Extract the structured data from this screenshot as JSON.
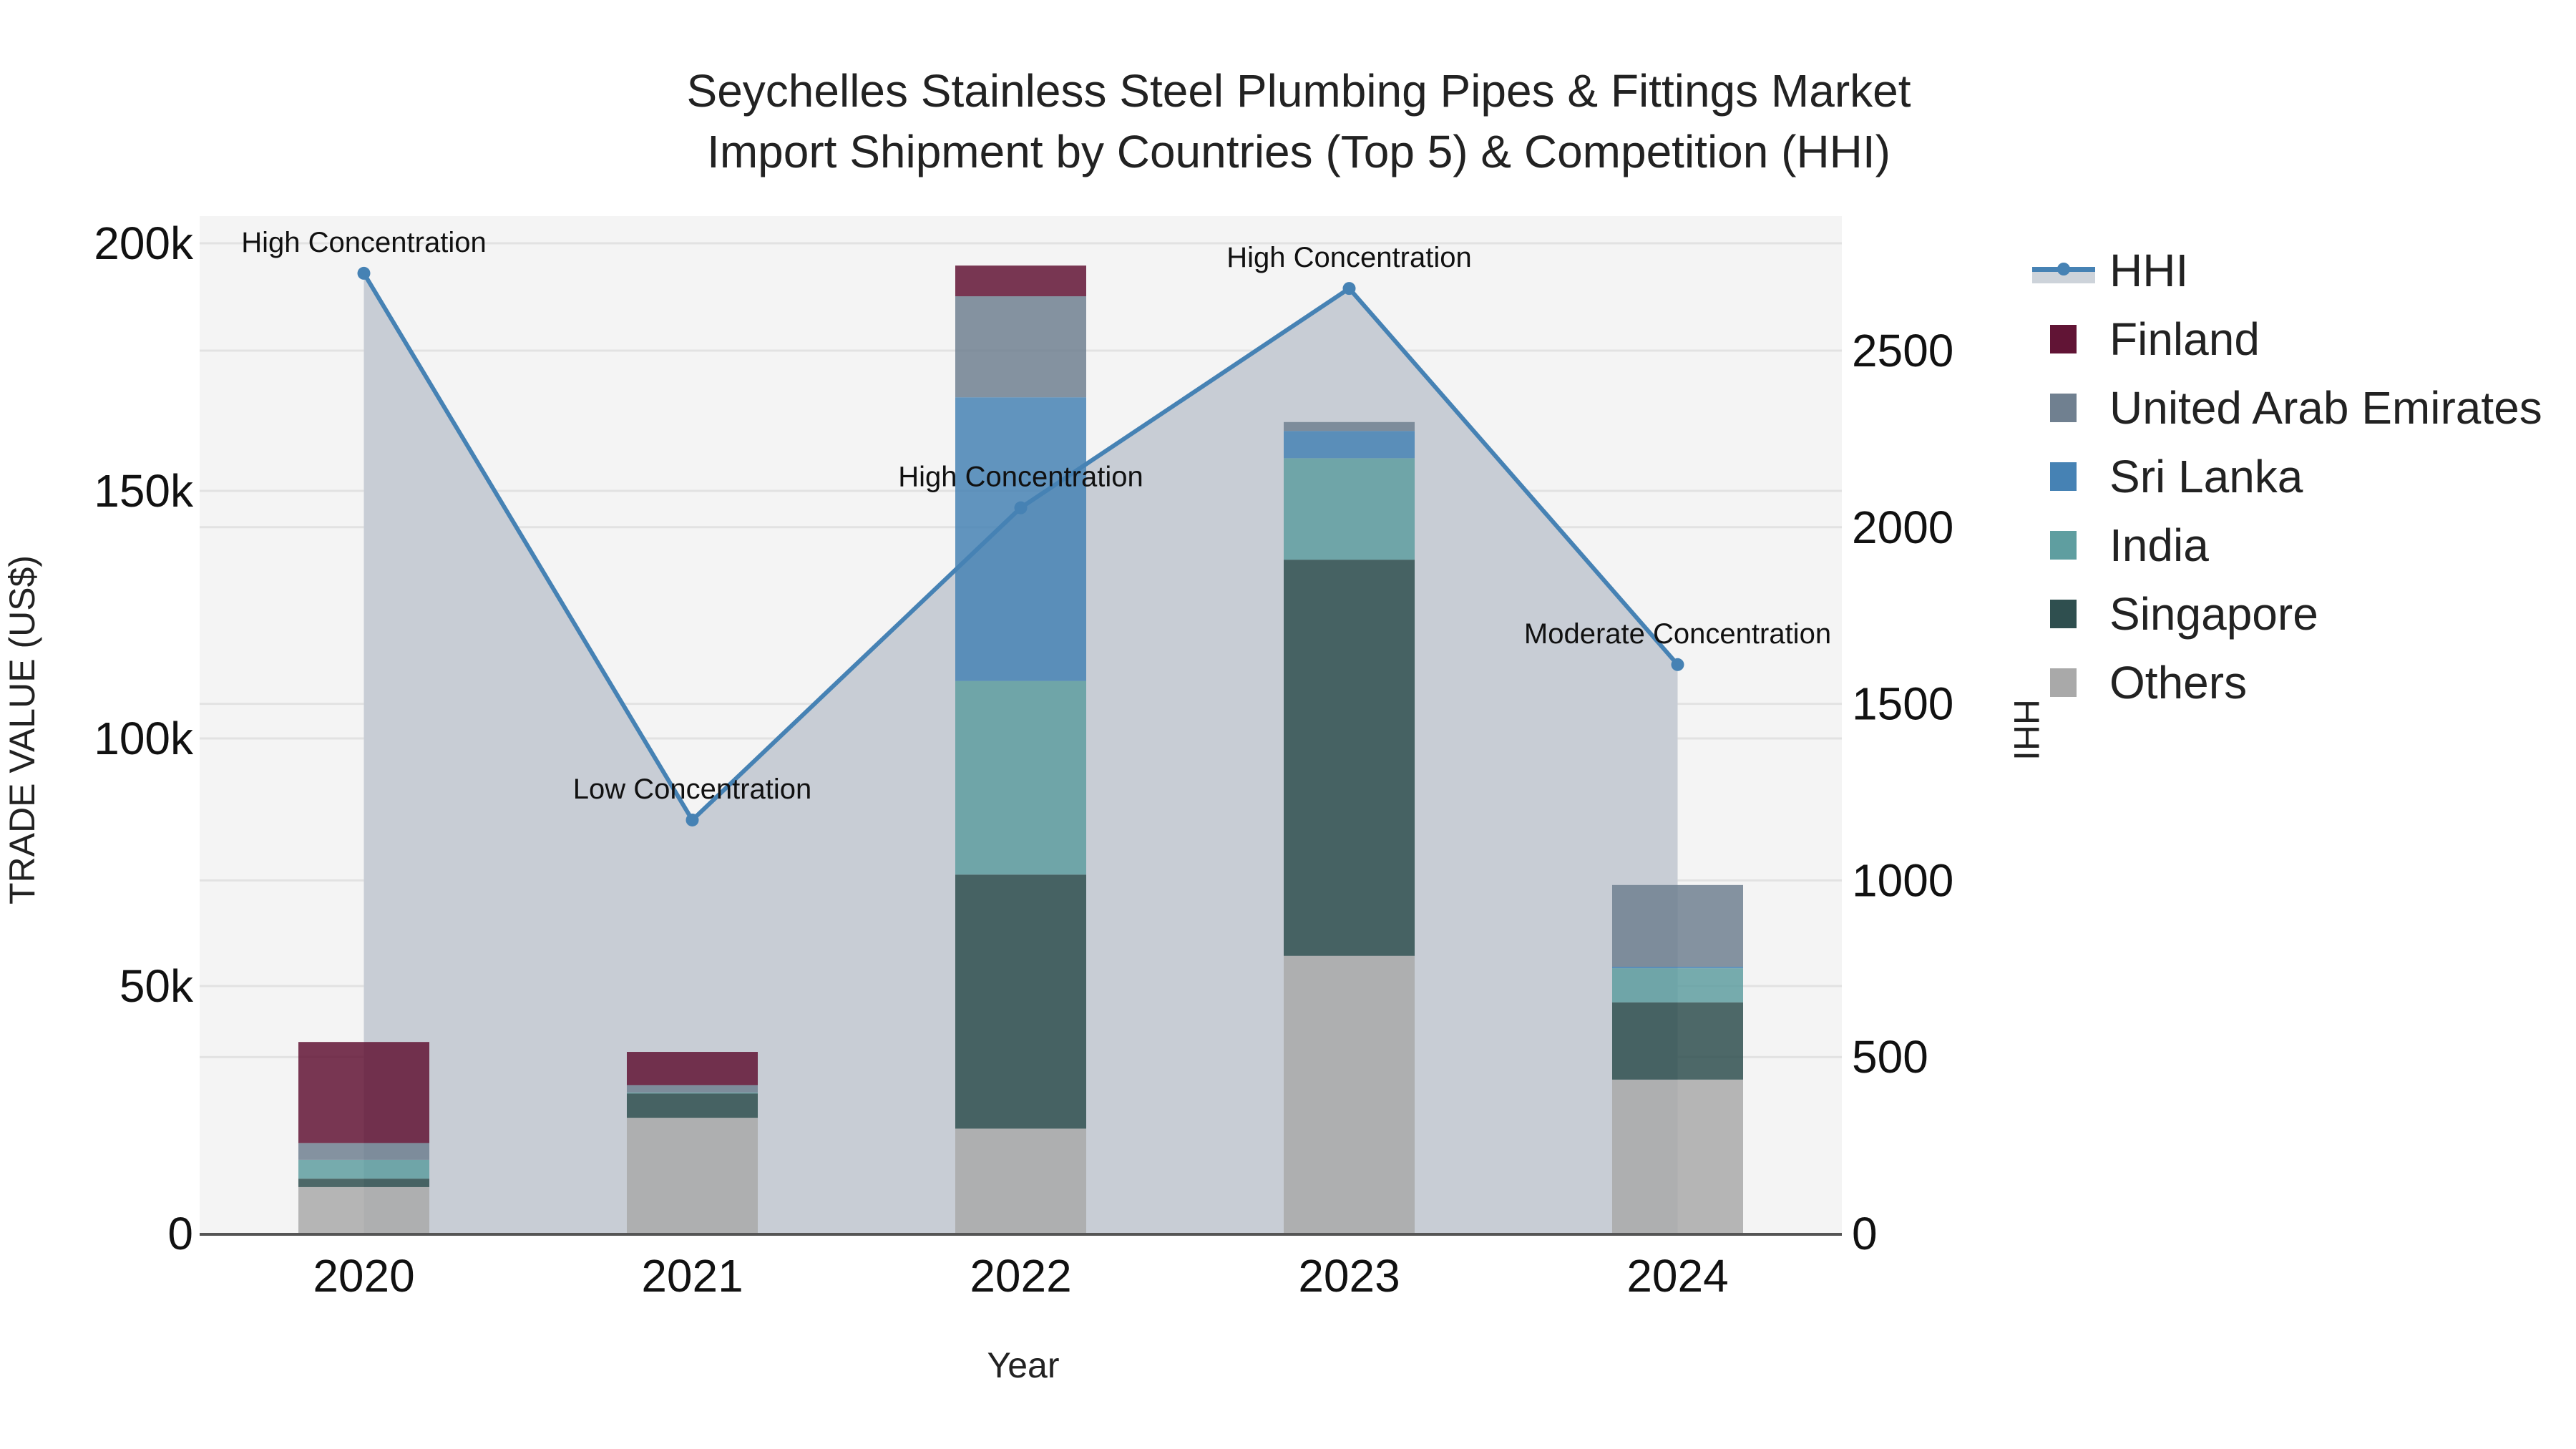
{
  "title": {
    "line1": "Seychelles Stainless Steel Plumbing Pipes & Fittings Market",
    "line2": "Import Shipment by Countries (Top 5) & Competition (HHI)"
  },
  "axes": {
    "x_title": "Year",
    "y_title": "TRADE VALUE (US$)",
    "y2_title": "HHI",
    "y_ticks": [
      "0",
      "50k",
      "100k",
      "150k",
      "200k"
    ],
    "y_tick_values": [
      0,
      50000,
      100000,
      150000,
      200000
    ],
    "y2_ticks": [
      "0",
      "500",
      "1000",
      "1500",
      "2000",
      "2500"
    ],
    "y2_tick_values": [
      0,
      500,
      1000,
      1500,
      2000,
      2500
    ]
  },
  "legend": [
    {
      "label": "HHI",
      "type": "line",
      "color": "#4682b4"
    },
    {
      "label": "Finland",
      "type": "bar",
      "color": "#611435"
    },
    {
      "label": "United Arab Emirates",
      "type": "bar",
      "color": "#708090"
    },
    {
      "label": "Sri Lanka",
      "type": "bar",
      "color": "#4682b4"
    },
    {
      "label": "India",
      "type": "bar",
      "color": "#5f9ea0"
    },
    {
      "label": "Singapore",
      "type": "bar",
      "color": "#2f4f4f"
    },
    {
      "label": "Others",
      "type": "bar",
      "color": "#a9a9a9"
    }
  ],
  "chart_data": {
    "type": "bar",
    "stacked": true,
    "title": "Seychelles Stainless Steel Plumbing Pipes & Fittings Market Import Shipment by Countries (Top 5) & Competition (HHI)",
    "xlabel": "Year",
    "ylabel": "TRADE VALUE (US$)",
    "y2label": "HHI",
    "ylim": [
      0,
      205000
    ],
    "y2lim": [
      0,
      2885
    ],
    "categories": [
      "2020",
      "2021",
      "2022",
      "2023",
      "2024"
    ],
    "series": [
      {
        "name": "Others",
        "color": "#a9a9a9",
        "values": [
          9400,
          23400,
          21200,
          56100,
          31100
        ]
      },
      {
        "name": "Singapore",
        "color": "#2f4f4f",
        "values": [
          1700,
          4900,
          51300,
          80000,
          15600
        ]
      },
      {
        "name": "India",
        "color": "#5f9ea0",
        "values": [
          3800,
          200,
          39100,
          20500,
          6900
        ]
      },
      {
        "name": "Sri Lanka",
        "color": "#4682b4",
        "values": [
          0,
          0,
          57300,
          5500,
          300
        ]
      },
      {
        "name": "United Arab Emirates",
        "color": "#708090",
        "values": [
          3400,
          1500,
          20400,
          1800,
          16500
        ]
      },
      {
        "name": "Finland",
        "color": "#611435",
        "values": [
          20400,
          6700,
          6200,
          0,
          0
        ]
      }
    ],
    "line_series": {
      "name": "HHI",
      "axis": "y2",
      "color": "#4682b4",
      "fill": "tozeroy",
      "values": [
        2719,
        1171,
        2055,
        2676,
        1611
      ],
      "annotations": [
        "High Concentration",
        "Low Concentration",
        "High Concentration",
        "High Concentration",
        "Moderate Concentration"
      ]
    },
    "grid": true,
    "legend_position": "right"
  }
}
